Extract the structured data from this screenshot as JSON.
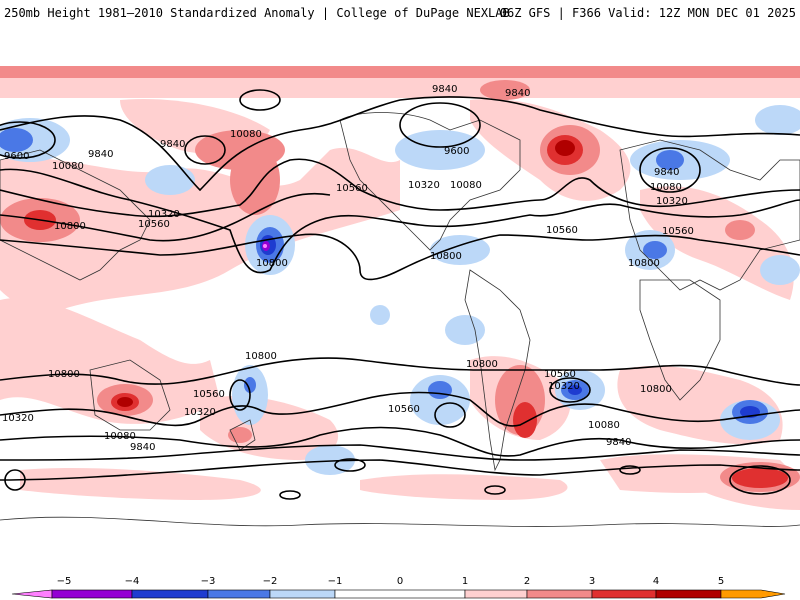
{
  "header": {
    "title_left": "250mb Height 1981–2010 Standardized Anomaly | College of DuPage NEXLAB",
    "title_right": "06Z GFS | F366 Valid: 12Z MON DEC 01 2025"
  },
  "map": {
    "product": "250mb height standardized anomaly",
    "contour_labels": [
      "9600",
      "9840",
      "10080",
      "10320",
      "10560",
      "10800",
      "9840",
      "10080",
      "9840",
      "10560",
      "10320",
      "10800",
      "10800",
      "9840",
      "9840",
      "10080",
      "10560",
      "10320",
      "10080",
      "9600",
      "10800",
      "10560",
      "10800",
      "10800",
      "10560",
      "10320",
      "10080",
      "10800",
      "10320",
      "9840",
      "10560",
      "10560",
      "10320",
      "10080",
      "9840",
      "10800",
      "10800"
    ],
    "colors": {
      "neg5": "#ff7fff",
      "neg4": "#9400d3",
      "neg3": "#1e3cd0",
      "neg2": "#4a78e6",
      "neg1": "#bcd8f8",
      "zero": "#ffffff",
      "pos1": "#ffd0d0",
      "pos2": "#f28a8a",
      "pos3": "#e03030",
      "pos4": "#b00000",
      "pos5": "#ff9a00"
    }
  },
  "colorbar": {
    "ticks": [
      "−5",
      "−4",
      "−3",
      "−2",
      "−1",
      "0",
      "1",
      "2",
      "3",
      "4",
      "5"
    ]
  }
}
